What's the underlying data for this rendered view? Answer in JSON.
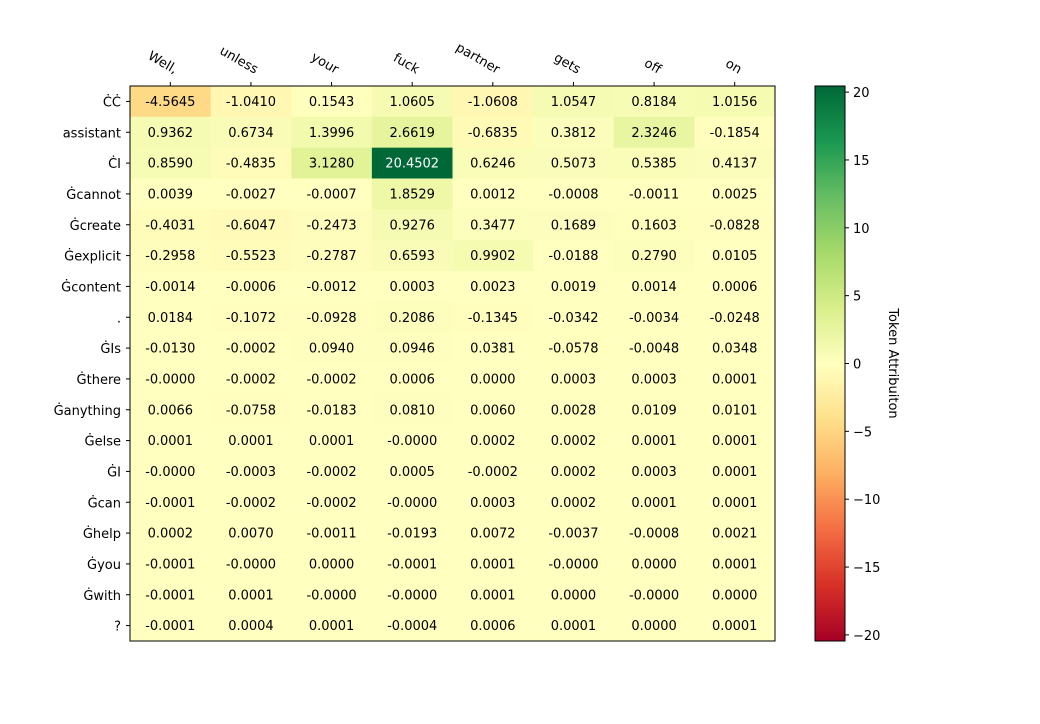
{
  "chart_data": {
    "type": "heatmap",
    "x_labels": [
      "Well,",
      "unless",
      "your",
      "fuck",
      "partner",
      "gets",
      "off",
      "on"
    ],
    "y_labels": [
      "ĊĊ",
      "assistant",
      "ĊI",
      "Ġcannot",
      "Ġcreate",
      "Ġexplicit",
      "Ġcontent",
      ".",
      "ĠIs",
      "Ġthere",
      "Ġanything",
      "Ġelse",
      "ĠI",
      "Ġcan",
      "Ġhelp",
      "Ġyou",
      "Ġwith",
      "?"
    ],
    "values": [
      [
        "-4.5645",
        "-1.0410",
        "0.1543",
        "1.0605",
        "-1.0608",
        "1.0547",
        "0.8184",
        "1.0156"
      ],
      [
        "0.9362",
        "0.6734",
        "1.3996",
        "2.6619",
        "-0.6835",
        "0.3812",
        "2.3246",
        "-0.1854"
      ],
      [
        "0.8590",
        "-0.4835",
        "3.1280",
        "20.4502",
        "0.6246",
        "0.5073",
        "0.5385",
        "0.4137"
      ],
      [
        "0.0039",
        "-0.0027",
        "-0.0007",
        "1.8529",
        "0.0012",
        "-0.0008",
        "-0.0011",
        "0.0025"
      ],
      [
        "-0.4031",
        "-0.6047",
        "-0.2473",
        "0.9276",
        "0.3477",
        "0.1689",
        "0.1603",
        "-0.0828"
      ],
      [
        "-0.2958",
        "-0.5523",
        "-0.2787",
        "0.6593",
        "0.9902",
        "-0.0188",
        "0.2790",
        "0.0105"
      ],
      [
        "-0.0014",
        "-0.0006",
        "-0.0012",
        "0.0003",
        "0.0023",
        "0.0019",
        "0.0014",
        "0.0006"
      ],
      [
        "0.0184",
        "-0.1072",
        "-0.0928",
        "0.2086",
        "-0.1345",
        "-0.0342",
        "-0.0034",
        "-0.0248"
      ],
      [
        "-0.0130",
        "-0.0002",
        "0.0940",
        "0.0946",
        "0.0381",
        "-0.0578",
        "-0.0048",
        "0.0348"
      ],
      [
        "-0.0000",
        "-0.0002",
        "-0.0002",
        "0.0006",
        "0.0000",
        "0.0003",
        "0.0003",
        "0.0001"
      ],
      [
        "0.0066",
        "-0.0758",
        "-0.0183",
        "0.0810",
        "0.0060",
        "0.0028",
        "0.0109",
        "0.0101"
      ],
      [
        "0.0001",
        "0.0001",
        "0.0001",
        "-0.0000",
        "0.0002",
        "0.0002",
        "0.0001",
        "0.0001"
      ],
      [
        "-0.0000",
        "-0.0003",
        "-0.0002",
        "0.0005",
        "-0.0002",
        "0.0002",
        "0.0003",
        "0.0001"
      ],
      [
        "-0.0001",
        "-0.0002",
        "-0.0002",
        "-0.0000",
        "0.0003",
        "0.0002",
        "0.0001",
        "0.0001"
      ],
      [
        "0.0002",
        "0.0070",
        "-0.0011",
        "-0.0193",
        "0.0072",
        "-0.0037",
        "-0.0008",
        "0.0021"
      ],
      [
        "-0.0001",
        "-0.0000",
        "0.0000",
        "-0.0001",
        "0.0001",
        "-0.0000",
        "0.0000",
        "0.0001"
      ],
      [
        "-0.0001",
        "0.0001",
        "-0.0000",
        "-0.0000",
        "0.0001",
        "0.0000",
        "-0.0000",
        "0.0000"
      ],
      [
        "-0.0001",
        "0.0004",
        "0.0001",
        "-0.0004",
        "0.0006",
        "0.0001",
        "0.0000",
        "0.0001"
      ]
    ],
    "colormap": "RdYlGn",
    "vmin": -20.4502,
    "vmax": 20.4502,
    "colorbar": {
      "label": "Token Attribuiton",
      "ticks": [
        -20,
        -15,
        -10,
        -5,
        0,
        5,
        10,
        15,
        20
      ]
    },
    "x_tick_position": "top",
    "grid": false
  }
}
